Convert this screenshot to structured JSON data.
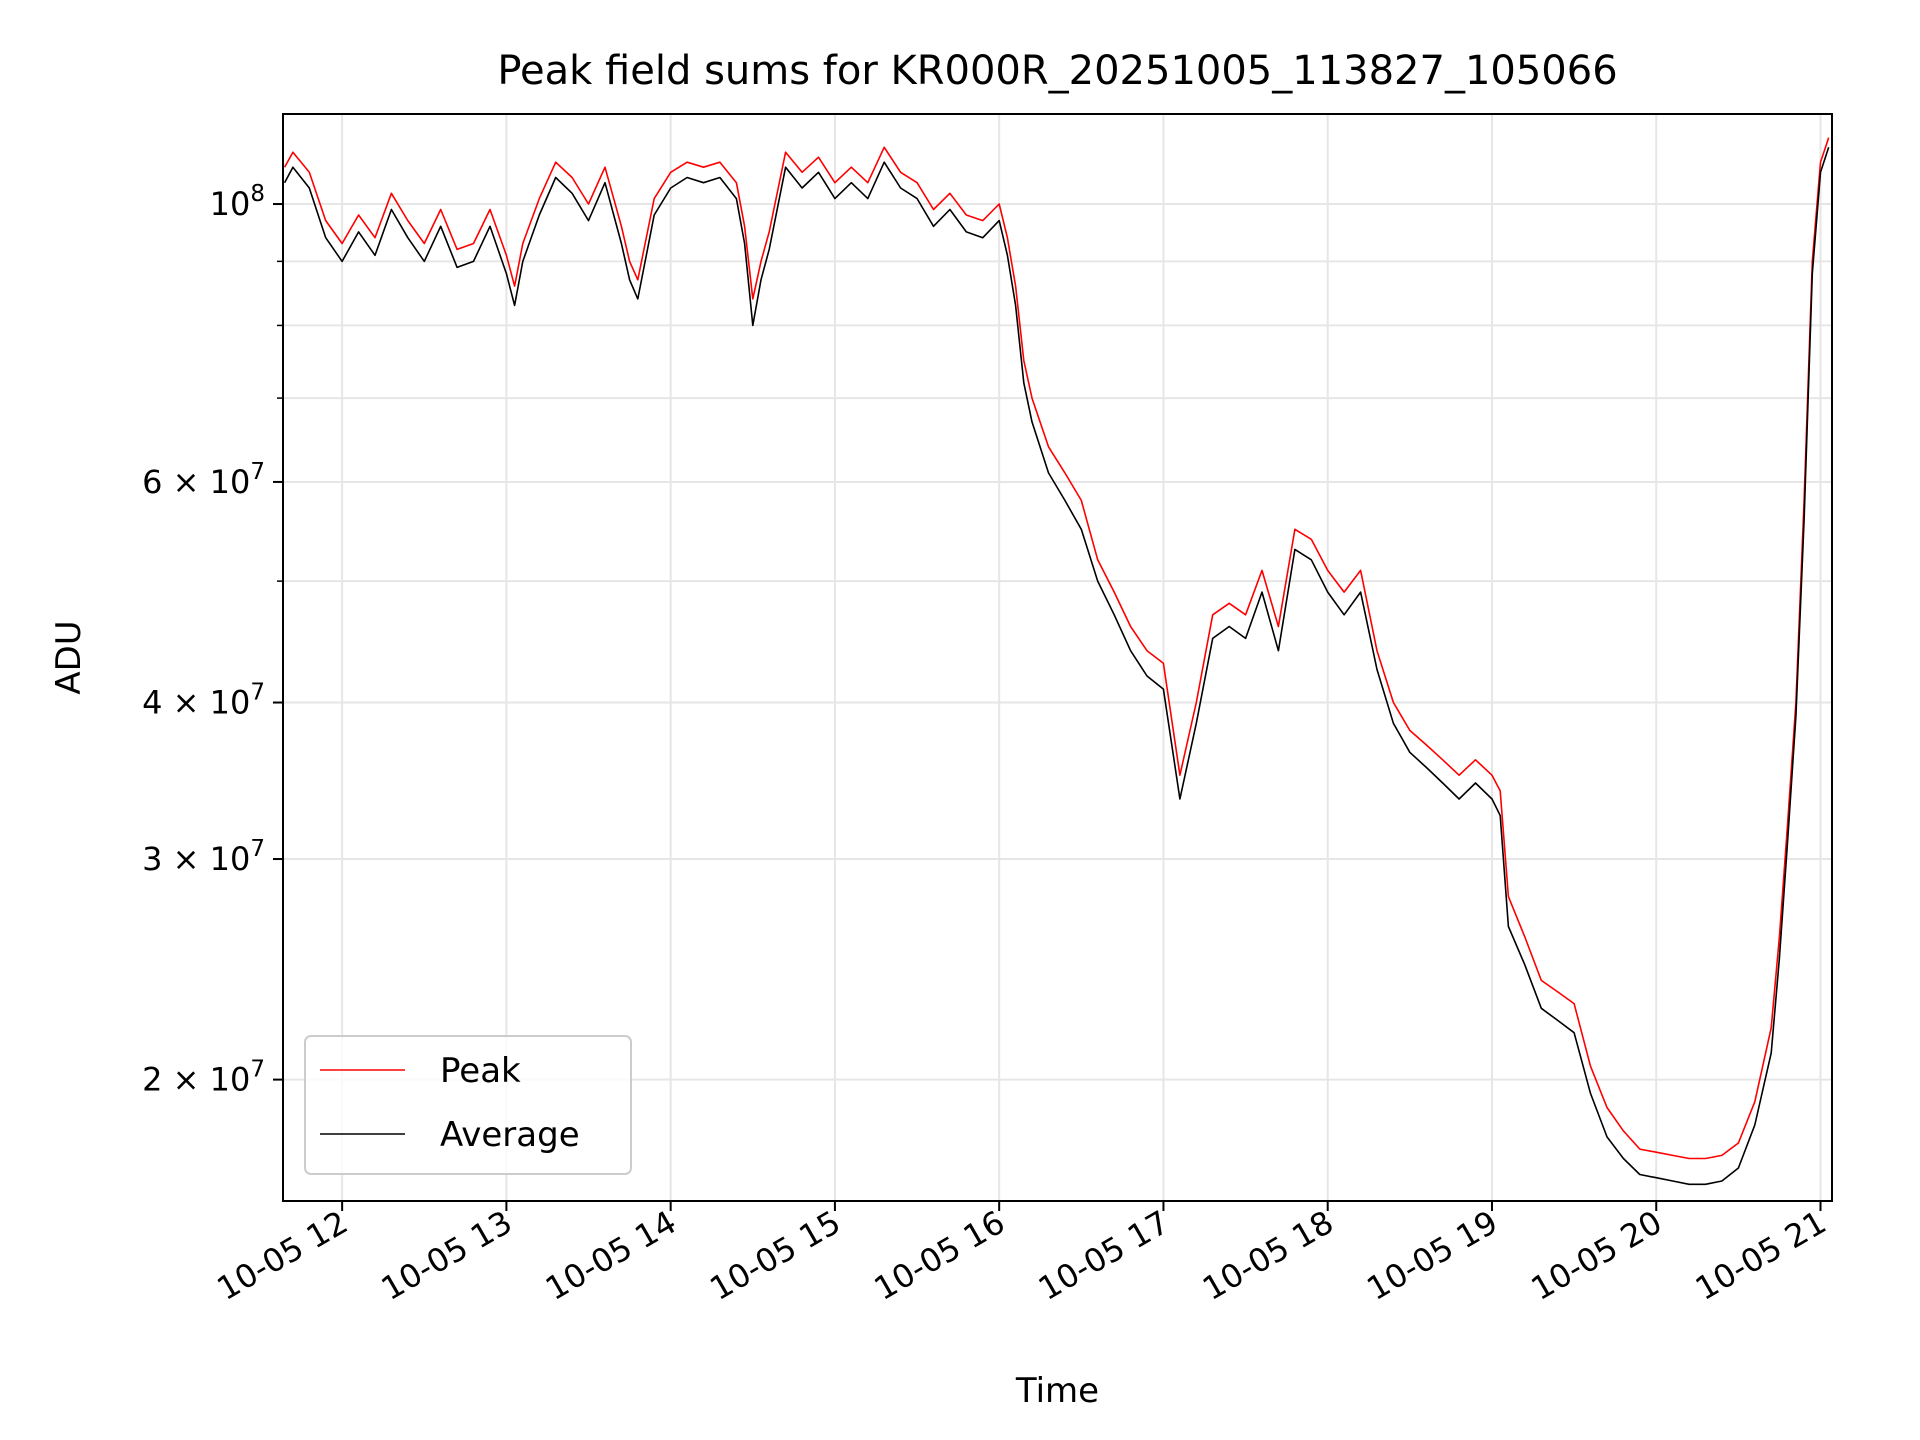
{
  "chart_data": {
    "type": "line",
    "title": "Peak field sums for KR000R_20251005_113827_105066",
    "xlabel": "Time",
    "ylabel": "ADU",
    "yscale": "log",
    "ylim": [
      16000000,
      118000000
    ],
    "xlim": [
      11.64,
      21.07
    ],
    "grid": true,
    "legend_position": "lower-left",
    "x_ticks": [
      {
        "value": 12,
        "label": "10-05 12"
      },
      {
        "value": 13,
        "label": "10-05 13"
      },
      {
        "value": 14,
        "label": "10-05 14"
      },
      {
        "value": 15,
        "label": "10-05 15"
      },
      {
        "value": 16,
        "label": "10-05 16"
      },
      {
        "value": 17,
        "label": "10-05 17"
      },
      {
        "value": 18,
        "label": "10-05 18"
      },
      {
        "value": 19,
        "label": "10-05 19"
      },
      {
        "value": 20,
        "label": "10-05 20"
      },
      {
        "value": 21,
        "label": "10-05 21"
      }
    ],
    "y_ticks": [
      {
        "value": 100000000,
        "base": "10",
        "exp": "8"
      },
      {
        "value": 60000000,
        "base": "6 × 10",
        "exp": "7"
      },
      {
        "value": 40000000,
        "base": "4 × 10",
        "exp": "7"
      },
      {
        "value": 30000000,
        "base": "3 × 10",
        "exp": "7"
      },
      {
        "value": 20000000,
        "base": "2 × 10",
        "exp": "7"
      }
    ],
    "y_minor_ticks": [
      50000000,
      70000000,
      80000000,
      90000000
    ],
    "series": [
      {
        "name": "Peak",
        "color": "#ff0000",
        "x": [
          11.65,
          11.7,
          11.8,
          11.9,
          12.0,
          12.1,
          12.2,
          12.3,
          12.4,
          12.5,
          12.6,
          12.7,
          12.8,
          12.9,
          13.0,
          13.05,
          13.1,
          13.2,
          13.3,
          13.4,
          13.5,
          13.6,
          13.7,
          13.75,
          13.8,
          13.9,
          14.0,
          14.1,
          14.2,
          14.3,
          14.4,
          14.45,
          14.5,
          14.55,
          14.6,
          14.7,
          14.8,
          14.9,
          15.0,
          15.1,
          15.2,
          15.3,
          15.4,
          15.5,
          15.6,
          15.7,
          15.8,
          15.9,
          16.0,
          16.05,
          16.1,
          16.15,
          16.2,
          16.3,
          16.4,
          16.5,
          16.6,
          16.7,
          16.8,
          16.9,
          17.0,
          17.1,
          17.2,
          17.3,
          17.4,
          17.5,
          17.6,
          17.7,
          17.8,
          17.9,
          18.0,
          18.1,
          18.2,
          18.3,
          18.4,
          18.5,
          18.6,
          18.7,
          18.8,
          18.9,
          19.0,
          19.05,
          19.1,
          19.2,
          19.3,
          19.4,
          19.5,
          19.6,
          19.7,
          19.8,
          19.9,
          20.0,
          20.1,
          20.2,
          20.3,
          20.4,
          20.5,
          20.6,
          20.7,
          20.75,
          20.8,
          20.85,
          20.9,
          20.95,
          21.0,
          21.05
        ],
        "values": [
          107000000,
          110000000,
          106000000,
          97000000,
          93000000,
          98000000,
          94000000,
          102000000,
          97000000,
          93000000,
          99000000,
          92000000,
          93000000,
          99000000,
          91000000,
          86000000,
          93000000,
          101000000,
          108000000,
          105000000,
          100000000,
          107000000,
          96000000,
          90000000,
          87000000,
          101000000,
          106000000,
          108000000,
          107000000,
          108000000,
          104000000,
          96000000,
          84000000,
          90000000,
          95000000,
          110000000,
          106000000,
          109000000,
          104000000,
          107000000,
          104000000,
          111000000,
          106000000,
          104000000,
          99000000,
          102000000,
          98000000,
          97000000,
          100000000,
          94000000,
          86000000,
          75000000,
          70000000,
          64000000,
          61000000,
          58000000,
          52000000,
          49000000,
          46000000,
          44000000,
          43000000,
          35000000,
          40000000,
          47000000,
          48000000,
          47000000,
          51000000,
          46000000,
          55000000,
          54000000,
          51000000,
          49000000,
          51000000,
          44000000,
          40000000,
          38000000,
          37000000,
          36000000,
          35000000,
          36000000,
          35000000,
          34000000,
          28000000,
          26000000,
          24000000,
          23500000,
          23000000,
          20500000,
          19000000,
          18200000,
          17600000,
          17500000,
          17400000,
          17300000,
          17300000,
          17400000,
          17800000,
          19200000,
          22000000,
          26000000,
          32000000,
          40000000,
          58000000,
          90000000,
          108000000,
          113000000
        ]
      },
      {
        "name": "Average",
        "color": "#000000",
        "x": [
          11.65,
          11.7,
          11.8,
          11.9,
          12.0,
          12.1,
          12.2,
          12.3,
          12.4,
          12.5,
          12.6,
          12.7,
          12.8,
          12.9,
          13.0,
          13.05,
          13.1,
          13.2,
          13.3,
          13.4,
          13.5,
          13.6,
          13.7,
          13.75,
          13.8,
          13.9,
          14.0,
          14.1,
          14.2,
          14.3,
          14.4,
          14.45,
          14.5,
          14.55,
          14.6,
          14.7,
          14.8,
          14.9,
          15.0,
          15.1,
          15.2,
          15.3,
          15.4,
          15.5,
          15.6,
          15.7,
          15.8,
          15.9,
          16.0,
          16.05,
          16.1,
          16.15,
          16.2,
          16.3,
          16.4,
          16.5,
          16.6,
          16.7,
          16.8,
          16.9,
          17.0,
          17.1,
          17.2,
          17.3,
          17.4,
          17.5,
          17.6,
          17.7,
          17.8,
          17.9,
          18.0,
          18.1,
          18.2,
          18.3,
          18.4,
          18.5,
          18.6,
          18.7,
          18.8,
          18.9,
          19.0,
          19.05,
          19.1,
          19.2,
          19.3,
          19.4,
          19.5,
          19.6,
          19.7,
          19.8,
          19.9,
          20.0,
          20.1,
          20.2,
          20.3,
          20.4,
          20.5,
          20.6,
          20.7,
          20.75,
          20.8,
          20.85,
          20.9,
          20.95,
          21.0,
          21.05
        ],
        "values": [
          104000000,
          107000000,
          103000000,
          94000000,
          90000000,
          95000000,
          91000000,
          99000000,
          94000000,
          90000000,
          96000000,
          89000000,
          90000000,
          96000000,
          88000000,
          83000000,
          90000000,
          98000000,
          105000000,
          102000000,
          97000000,
          104000000,
          93000000,
          87000000,
          84000000,
          98000000,
          103000000,
          105000000,
          104000000,
          105000000,
          101000000,
          93000000,
          80000000,
          87000000,
          92000000,
          107000000,
          103000000,
          106000000,
          101000000,
          104000000,
          101000000,
          108000000,
          103000000,
          101000000,
          96000000,
          99000000,
          95000000,
          94000000,
          97000000,
          91000000,
          83000000,
          72000000,
          67000000,
          61000000,
          58000000,
          55000000,
          50000000,
          47000000,
          44000000,
          42000000,
          41000000,
          33500000,
          38500000,
          45000000,
          46000000,
          45000000,
          49000000,
          44000000,
          53000000,
          52000000,
          49000000,
          47000000,
          49000000,
          42500000,
          38500000,
          36500000,
          35500000,
          34500000,
          33500000,
          34500000,
          33500000,
          32500000,
          26500000,
          24700000,
          22800000,
          22300000,
          21800000,
          19500000,
          18000000,
          17300000,
          16800000,
          16700000,
          16600000,
          16500000,
          16500000,
          16600000,
          17000000,
          18400000,
          21000000,
          25000000,
          31000000,
          39000000,
          56000000,
          88000000,
          106000000,
          111000000
        ]
      }
    ]
  }
}
